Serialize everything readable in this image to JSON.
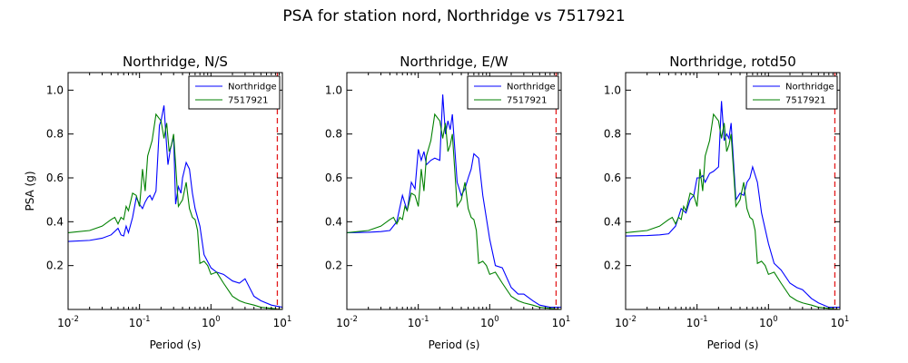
{
  "figure": {
    "title": "PSA for station nord, Northridge vs 7517921"
  },
  "chart_data": [
    {
      "type": "line",
      "title": "Northridge, N/S",
      "xlabel": "Period (s)",
      "ylabel": "PSA (g)",
      "xscale": "log",
      "xlim": [
        0.01,
        10
      ],
      "ylim": [
        0,
        1.08
      ],
      "xticks": [
        0.01,
        0.1,
        1,
        10
      ],
      "xtick_labels": [
        [
          "10",
          "-2"
        ],
        [
          "10",
          "-1"
        ],
        [
          "10",
          "0"
        ],
        [
          "10",
          "1"
        ]
      ],
      "yticks": [
        0.2,
        0.4,
        0.6,
        0.8,
        1.0
      ],
      "ytick_labels": [
        "0.2",
        "0.4",
        "0.6",
        "0.8",
        "1.0"
      ],
      "legend": "top-right",
      "vline": {
        "x": 8.5,
        "color": "#e31a1c"
      },
      "series": [
        {
          "name": "Northridge",
          "color": "#0000ff",
          "x": [
            0.01,
            0.02,
            0.03,
            0.04,
            0.05,
            0.055,
            0.06,
            0.065,
            0.07,
            0.08,
            0.09,
            0.1,
            0.11,
            0.12,
            0.13,
            0.14,
            0.15,
            0.17,
            0.19,
            0.2,
            0.22,
            0.24,
            0.25,
            0.27,
            0.3,
            0.32,
            0.35,
            0.38,
            0.4,
            0.45,
            0.5,
            0.55,
            0.6,
            0.7,
            0.8,
            1.0,
            1.2,
            1.5,
            2.0,
            2.5,
            3.0,
            4.0,
            5.0,
            7.0,
            10.0
          ],
          "y": [
            0.31,
            0.315,
            0.325,
            0.34,
            0.37,
            0.34,
            0.335,
            0.38,
            0.35,
            0.42,
            0.51,
            0.48,
            0.46,
            0.49,
            0.51,
            0.52,
            0.5,
            0.54,
            0.84,
            0.86,
            0.93,
            0.74,
            0.66,
            0.73,
            0.79,
            0.48,
            0.56,
            0.53,
            0.6,
            0.67,
            0.64,
            0.53,
            0.46,
            0.38,
            0.25,
            0.19,
            0.17,
            0.16,
            0.13,
            0.12,
            0.14,
            0.06,
            0.04,
            0.02,
            0.01
          ]
        },
        {
          "name": "7517921",
          "color": "#008000",
          "x": [
            0.01,
            0.02,
            0.03,
            0.04,
            0.045,
            0.05,
            0.055,
            0.06,
            0.065,
            0.07,
            0.08,
            0.09,
            0.1,
            0.105,
            0.11,
            0.12,
            0.13,
            0.15,
            0.17,
            0.2,
            0.22,
            0.24,
            0.26,
            0.28,
            0.3,
            0.35,
            0.4,
            0.45,
            0.5,
            0.55,
            0.6,
            0.65,
            0.7,
            0.8,
            0.9,
            1.0,
            1.2,
            1.5,
            2.0,
            2.5,
            3.0,
            4.0,
            5.0,
            7.0,
            10.0
          ],
          "y": [
            0.35,
            0.36,
            0.38,
            0.41,
            0.42,
            0.39,
            0.42,
            0.41,
            0.47,
            0.45,
            0.53,
            0.52,
            0.47,
            0.55,
            0.64,
            0.54,
            0.7,
            0.77,
            0.89,
            0.86,
            0.78,
            0.85,
            0.72,
            0.75,
            0.8,
            0.47,
            0.5,
            0.58,
            0.46,
            0.42,
            0.41,
            0.36,
            0.21,
            0.22,
            0.2,
            0.16,
            0.17,
            0.12,
            0.06,
            0.04,
            0.03,
            0.02,
            0.01,
            0.005,
            0.0
          ]
        }
      ]
    },
    {
      "type": "line",
      "title": "Northridge, E/W",
      "xlabel": "Period (s)",
      "ylabel": "",
      "xscale": "log",
      "xlim": [
        0.01,
        10
      ],
      "ylim": [
        0,
        1.08
      ],
      "xticks": [
        0.01,
        0.1,
        1,
        10
      ],
      "xtick_labels": [
        [
          "10",
          "-2"
        ],
        [
          "10",
          "-1"
        ],
        [
          "10",
          "0"
        ],
        [
          "10",
          "1"
        ]
      ],
      "yticks": [
        0.2,
        0.4,
        0.6,
        0.8,
        1.0
      ],
      "ytick_labels": [
        "0.2",
        "0.4",
        "0.6",
        "0.8",
        "1.0"
      ],
      "legend": "top-right",
      "vline": {
        "x": 8.5,
        "color": "#e31a1c"
      },
      "series": [
        {
          "name": "Northridge",
          "color": "#0000ff",
          "x": [
            0.01,
            0.02,
            0.03,
            0.04,
            0.05,
            0.06,
            0.07,
            0.08,
            0.09,
            0.1,
            0.11,
            0.12,
            0.13,
            0.15,
            0.17,
            0.2,
            0.22,
            0.24,
            0.26,
            0.28,
            0.3,
            0.35,
            0.4,
            0.45,
            0.5,
            0.55,
            0.6,
            0.7,
            0.8,
            1.0,
            1.2,
            1.5,
            2.0,
            2.5,
            3.0,
            4.0,
            5.0,
            7.0,
            10.0
          ],
          "y": [
            0.35,
            0.352,
            0.355,
            0.36,
            0.4,
            0.52,
            0.45,
            0.58,
            0.55,
            0.73,
            0.68,
            0.72,
            0.66,
            0.68,
            0.69,
            0.68,
            0.98,
            0.8,
            0.86,
            0.82,
            0.89,
            0.58,
            0.52,
            0.55,
            0.6,
            0.64,
            0.71,
            0.69,
            0.52,
            0.32,
            0.2,
            0.19,
            0.1,
            0.07,
            0.07,
            0.04,
            0.02,
            0.01,
            0.01
          ]
        },
        {
          "name": "7517921",
          "color": "#008000",
          "x": [
            0.01,
            0.02,
            0.03,
            0.04,
            0.045,
            0.05,
            0.055,
            0.06,
            0.065,
            0.07,
            0.08,
            0.09,
            0.1,
            0.105,
            0.11,
            0.12,
            0.13,
            0.15,
            0.17,
            0.2,
            0.22,
            0.24,
            0.26,
            0.28,
            0.3,
            0.35,
            0.4,
            0.45,
            0.5,
            0.55,
            0.6,
            0.65,
            0.7,
            0.8,
            0.9,
            1.0,
            1.2,
            1.5,
            2.0,
            2.5,
            3.0,
            4.0,
            5.0,
            7.0,
            10.0
          ],
          "y": [
            0.35,
            0.36,
            0.38,
            0.41,
            0.42,
            0.39,
            0.42,
            0.41,
            0.47,
            0.45,
            0.53,
            0.52,
            0.47,
            0.55,
            0.64,
            0.54,
            0.7,
            0.77,
            0.89,
            0.86,
            0.78,
            0.85,
            0.72,
            0.75,
            0.8,
            0.47,
            0.5,
            0.58,
            0.46,
            0.42,
            0.41,
            0.36,
            0.21,
            0.22,
            0.2,
            0.16,
            0.17,
            0.12,
            0.06,
            0.04,
            0.03,
            0.02,
            0.01,
            0.005,
            0.0
          ]
        }
      ]
    },
    {
      "type": "line",
      "title": "Northridge, rotd50",
      "xlabel": "Period (s)",
      "ylabel": "",
      "xscale": "log",
      "xlim": [
        0.01,
        10
      ],
      "ylim": [
        0,
        1.08
      ],
      "xticks": [
        0.01,
        0.1,
        1,
        10
      ],
      "xtick_labels": [
        [
          "10",
          "-2"
        ],
        [
          "10",
          "-1"
        ],
        [
          "10",
          "0"
        ],
        [
          "10",
          "1"
        ]
      ],
      "yticks": [
        0.2,
        0.4,
        0.6,
        0.8,
        1.0
      ],
      "ytick_labels": [
        "0.2",
        "0.4",
        "0.6",
        "0.8",
        "1.0"
      ],
      "legend": "top-right",
      "vline": {
        "x": 8.5,
        "color": "#e31a1c"
      },
      "series": [
        {
          "name": "Northridge",
          "color": "#0000ff",
          "x": [
            0.01,
            0.02,
            0.03,
            0.04,
            0.05,
            0.06,
            0.07,
            0.08,
            0.09,
            0.1,
            0.11,
            0.12,
            0.13,
            0.15,
            0.17,
            0.2,
            0.22,
            0.24,
            0.26,
            0.28,
            0.3,
            0.35,
            0.4,
            0.45,
            0.5,
            0.55,
            0.6,
            0.7,
            0.8,
            1.0,
            1.2,
            1.5,
            2.0,
            2.5,
            3.0,
            4.0,
            5.0,
            7.0,
            10.0
          ],
          "y": [
            0.335,
            0.337,
            0.34,
            0.345,
            0.38,
            0.46,
            0.44,
            0.5,
            0.52,
            0.6,
            0.6,
            0.61,
            0.58,
            0.62,
            0.63,
            0.65,
            0.95,
            0.77,
            0.8,
            0.78,
            0.85,
            0.5,
            0.53,
            0.52,
            0.58,
            0.6,
            0.65,
            0.58,
            0.44,
            0.3,
            0.21,
            0.18,
            0.12,
            0.1,
            0.09,
            0.05,
            0.03,
            0.01,
            0.01
          ]
        },
        {
          "name": "7517921",
          "color": "#008000",
          "x": [
            0.01,
            0.02,
            0.03,
            0.04,
            0.045,
            0.05,
            0.055,
            0.06,
            0.065,
            0.07,
            0.08,
            0.09,
            0.1,
            0.105,
            0.11,
            0.12,
            0.13,
            0.15,
            0.17,
            0.2,
            0.22,
            0.24,
            0.26,
            0.28,
            0.3,
            0.35,
            0.4,
            0.45,
            0.5,
            0.55,
            0.6,
            0.65,
            0.7,
            0.8,
            0.9,
            1.0,
            1.2,
            1.5,
            2.0,
            2.5,
            3.0,
            4.0,
            5.0,
            7.0,
            10.0
          ],
          "y": [
            0.35,
            0.36,
            0.38,
            0.41,
            0.42,
            0.39,
            0.42,
            0.41,
            0.47,
            0.45,
            0.53,
            0.52,
            0.47,
            0.55,
            0.64,
            0.54,
            0.7,
            0.77,
            0.89,
            0.86,
            0.78,
            0.85,
            0.72,
            0.75,
            0.8,
            0.47,
            0.5,
            0.58,
            0.46,
            0.42,
            0.41,
            0.36,
            0.21,
            0.22,
            0.2,
            0.16,
            0.17,
            0.12,
            0.06,
            0.04,
            0.03,
            0.02,
            0.01,
            0.005,
            0.0
          ]
        }
      ]
    }
  ]
}
